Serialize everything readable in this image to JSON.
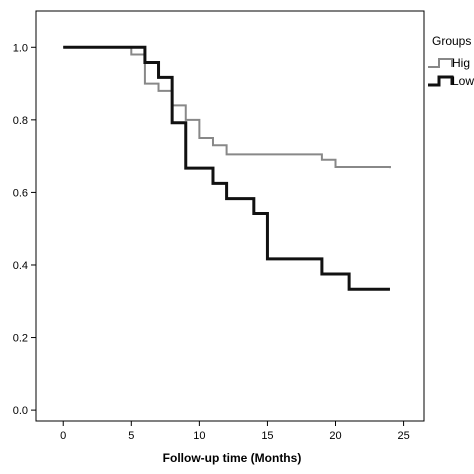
{
  "chart_data": {
    "type": "line",
    "subtype": "step",
    "title": "",
    "xlabel": "Follow-up time (Months)",
    "ylabel": "",
    "xlim": [
      -2,
      26.5
    ],
    "ylim": [
      -0.03,
      1.1
    ],
    "xticks": [
      0,
      5,
      10,
      15,
      20,
      25
    ],
    "yticks": [
      0.0,
      0.2,
      0.4,
      0.6,
      0.8,
      1.0
    ],
    "xtick_labels": [
      "0",
      "5",
      "10",
      "15",
      "20",
      "25"
    ],
    "ytick_labels": [
      "0.0",
      "0.2",
      "0.4",
      "0.6",
      "0.8",
      "1.0"
    ],
    "grid": false,
    "legend": {
      "title": "Groups",
      "placement": "right",
      "entries": [
        "Hig",
        "Low"
      ]
    },
    "series": [
      {
        "name": "Hig",
        "color": "#888888",
        "x": [
          0,
          5,
          6,
          7,
          8,
          9,
          10,
          11,
          12,
          19,
          20,
          24
        ],
        "y": [
          1.0,
          0.98,
          0.9,
          0.88,
          0.84,
          0.8,
          0.75,
          0.73,
          0.705,
          0.69,
          0.67,
          0.667
        ]
      },
      {
        "name": "Low",
        "color": "#111111",
        "x": [
          0,
          6,
          7,
          8,
          9,
          11,
          12,
          14,
          15,
          19,
          21,
          24
        ],
        "y": [
          1.0,
          0.958,
          0.917,
          0.792,
          0.667,
          0.625,
          0.583,
          0.542,
          0.417,
          0.375,
          0.333,
          0.333
        ]
      }
    ]
  }
}
